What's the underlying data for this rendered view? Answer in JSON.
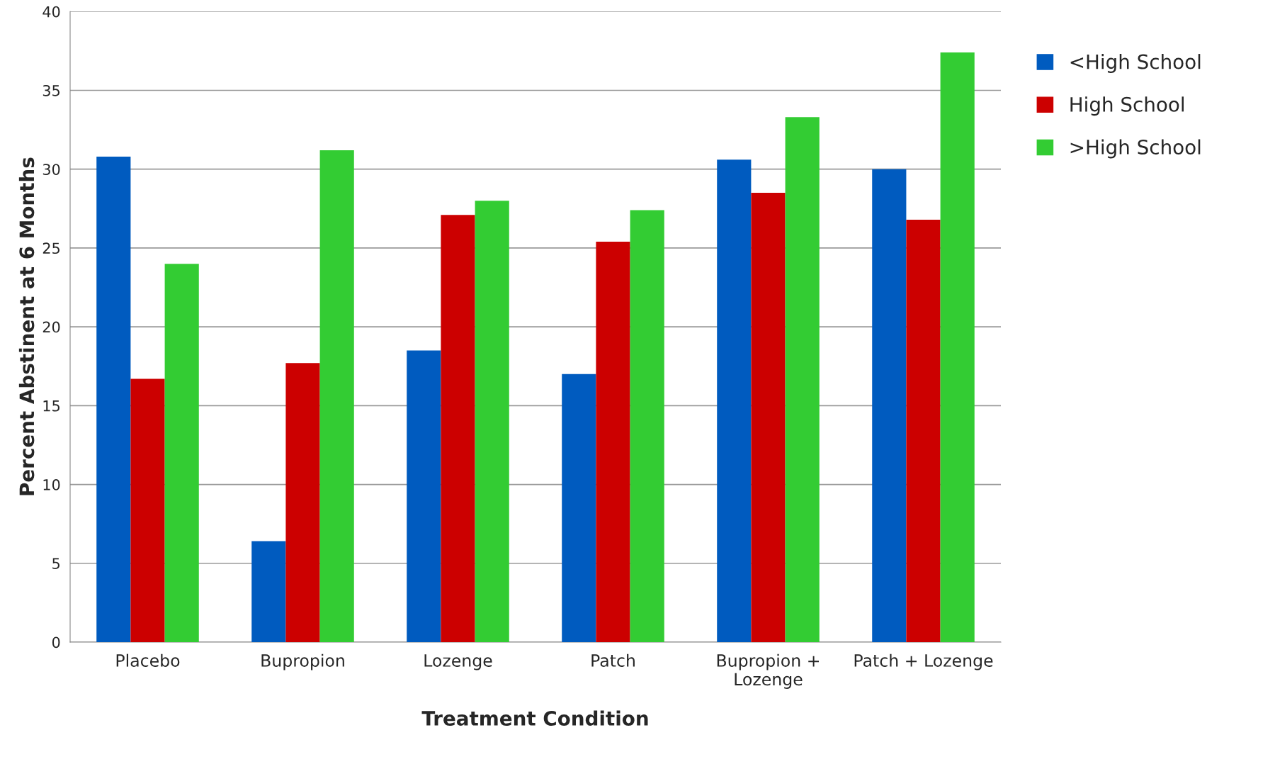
{
  "chart_data": {
    "type": "bar",
    "xlabel": "Treatment Condition",
    "ylabel": "Percent Abstinent at 6 Months",
    "categories": [
      "Placebo",
      "Bupropion",
      "Lozenge",
      "Patch",
      "Bupropion + Lozenge",
      "Patch + Lozenge"
    ],
    "series": [
      {
        "name": "<High School",
        "color": "#005bbf",
        "values": [
          30.8,
          6.4,
          18.5,
          17.0,
          30.6,
          30.0
        ]
      },
      {
        "name": "High School",
        "color": "#cc0000",
        "values": [
          16.7,
          17.7,
          27.1,
          25.4,
          28.5,
          26.8
        ]
      },
      {
        "name": ">High School",
        "color": "#33cc33",
        "values": [
          24.0,
          31.2,
          28.0,
          27.4,
          33.3,
          37.4
        ]
      }
    ],
    "ylim": [
      0,
      40
    ],
    "yticks": [
      0,
      5,
      10,
      15,
      20,
      25,
      30,
      35,
      40
    ],
    "grid": "y",
    "legend": "right"
  }
}
